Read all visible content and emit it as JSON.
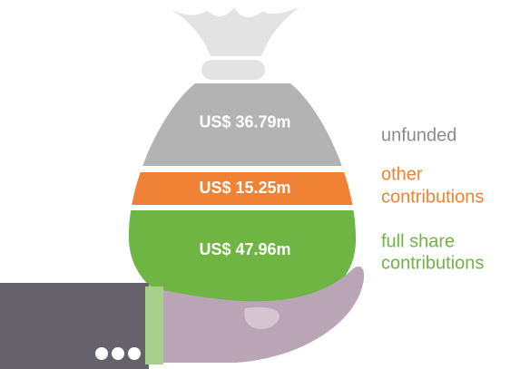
{
  "segments": [
    {
      "label": "US$ 36.79m",
      "name": [
        "unfunded"
      ],
      "color": "#b3b3b3",
      "text_color": "#8c8c8c"
    },
    {
      "label": "US$ 15.25m",
      "name": [
        "other",
        "contributions"
      ],
      "color": "#f08236",
      "text_color": "#f08236"
    },
    {
      "label": "US$ 47.96m",
      "name": [
        "full share",
        "contributions"
      ],
      "color": "#6fb543",
      "text_color": "#6fb543"
    }
  ]
}
